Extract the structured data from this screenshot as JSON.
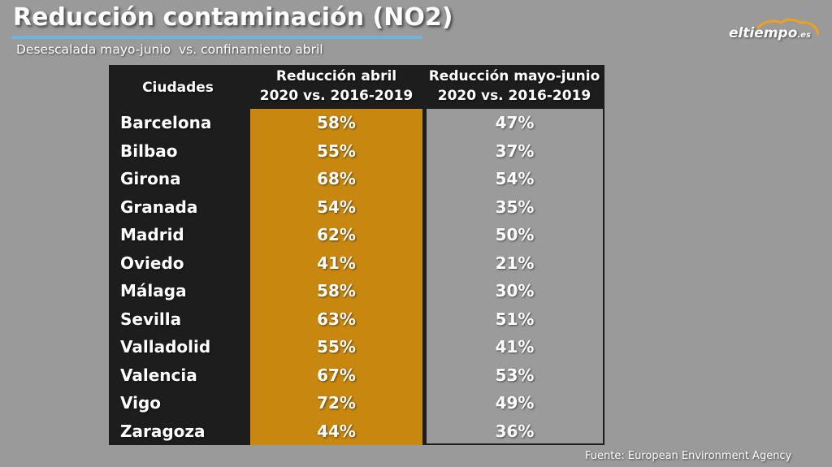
{
  "title": "Reducción contaminación (NO2)",
  "subtitle": "Desescalada mayo-junio  vs. confinamiento abril",
  "logo": {
    "main": "eltiempo",
    "suffix": ".es",
    "icon": "cloud-icon"
  },
  "source": "Fuente: European Environment Agency",
  "colors": {
    "background": "#9a9a9a",
    "table_bg": "#1d1d1d",
    "april_column": "#c8870e",
    "mayjune_column": "#9b9b9b",
    "title_underline": "#6fb3d6"
  },
  "chart_data": {
    "type": "table",
    "columns": [
      {
        "label": "Ciudades"
      },
      {
        "line1": "Reducción abril",
        "line2": "2020 vs. 2016-2019"
      },
      {
        "line1": "Reducción mayo-junio",
        "line2": "2020 vs. 2016-2019"
      }
    ],
    "rows": [
      {
        "city": "Barcelona",
        "april": "58%",
        "mayjune": "47%"
      },
      {
        "city": "Bilbao",
        "april": "55%",
        "mayjune": "37%"
      },
      {
        "city": "Girona",
        "april": "68%",
        "mayjune": "54%"
      },
      {
        "city": "Granada",
        "april": "54%",
        "mayjune": "35%"
      },
      {
        "city": "Madrid",
        "april": "62%",
        "mayjune": "50%"
      },
      {
        "city": "Oviedo",
        "april": "41%",
        "mayjune": "21%"
      },
      {
        "city": "Málaga",
        "april": "58%",
        "mayjune": "30%"
      },
      {
        "city": "Sevilla",
        "april": "63%",
        "mayjune": "51%"
      },
      {
        "city": "Valladolid",
        "april": "55%",
        "mayjune": "41%"
      },
      {
        "city": "Valencia",
        "april": "67%",
        "mayjune": "53%"
      },
      {
        "city": "Vigo",
        "april": "72%",
        "mayjune": "49%"
      },
      {
        "city": "Zaragoza",
        "april": "44%",
        "mayjune": "36%"
      }
    ]
  }
}
